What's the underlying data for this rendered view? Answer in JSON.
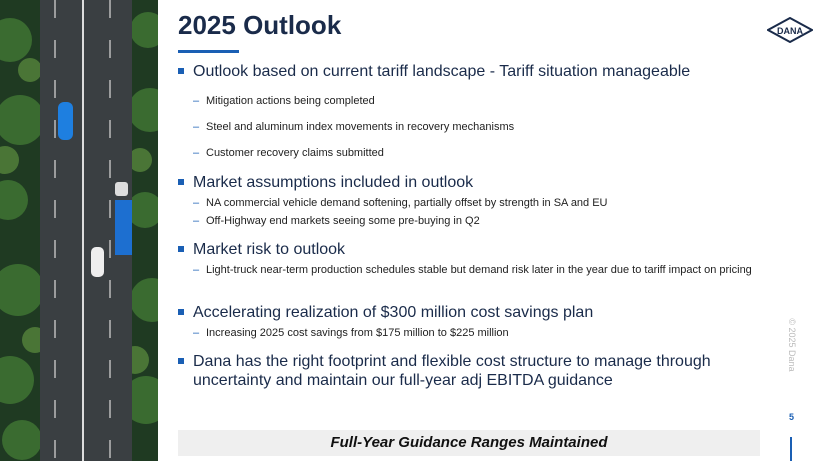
{
  "header": {
    "title": "2025 Outlook",
    "logo": "DANA"
  },
  "bullets": [
    {
      "text": "Outlook based on current tariff landscape - Tariff situation manageable",
      "subs": [
        "Mitigation actions being completed",
        "Steel and aluminum index movements in recovery mechanisms",
        "Customer recovery claims submitted"
      ]
    },
    {
      "text": "Market assumptions included in outlook",
      "subs": [
        "NA commercial vehicle demand softening, partially offset by strength in SA and EU",
        "Off-Highway end markets seeing some pre-buying in Q2"
      ]
    },
    {
      "text": "Market risk to outlook",
      "subs": [
        "Light-truck near-term production schedules stable but demand risk later in the year due to tariff impact on pricing"
      ]
    },
    {
      "text": "Accelerating realization of $300 million cost savings plan",
      "subs": [
        "Increasing 2025 cost savings from $175 million to $225 million"
      ]
    },
    {
      "text": "Dana has the right footprint and flexible cost structure to manage through uncertainty and maintain our full-year adj EBITDA guidance",
      "subs": []
    }
  ],
  "banner": "Full-Year Guidance Ranges Maintained",
  "footer": {
    "copyright": "© 2025 Dana",
    "page": "5"
  }
}
